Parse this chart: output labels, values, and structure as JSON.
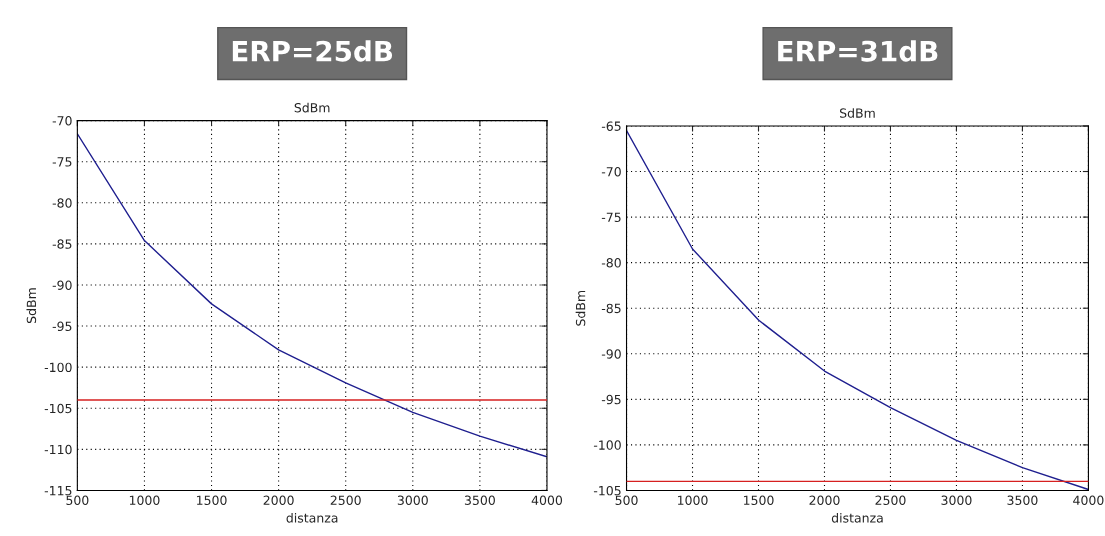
{
  "chart_data": [
    {
      "type": "line",
      "title": "ERP=25dB",
      "subtitle": "SdBm",
      "xlabel": "distanza",
      "ylabel": "SdBm",
      "x": [
        500,
        1000,
        1500,
        2000,
        2500,
        3000,
        3500,
        4000
      ],
      "series": [
        {
          "color": "#1f1f8f",
          "values": [
            -71.6,
            -84.6,
            -92.3,
            -97.9,
            -101.9,
            -105.5,
            -108.4,
            -110.9
          ]
        }
      ],
      "ref_lines": [
        {
          "axis": "y",
          "value": -104,
          "color": "#d62020"
        }
      ],
      "xlim": [
        500,
        4000
      ],
      "ylim": [
        -115,
        -70
      ],
      "xticks": [
        500,
        1000,
        1500,
        2000,
        2500,
        3000,
        3500,
        4000
      ],
      "yticks": [
        -115,
        -110,
        -105,
        -100,
        -95,
        -90,
        -85,
        -80,
        -75,
        -70
      ],
      "grid": true,
      "legend": false
    },
    {
      "type": "line",
      "title": "ERP=31dB",
      "subtitle": "SdBm",
      "xlabel": "distanza",
      "ylabel": "SdBm",
      "x": [
        500,
        1000,
        1500,
        2000,
        2500,
        3000,
        3500,
        4000
      ],
      "series": [
        {
          "color": "#1f1f8f",
          "values": [
            -65.5,
            -78.5,
            -86.3,
            -91.9,
            -95.9,
            -99.5,
            -102.5,
            -104.9
          ]
        }
      ],
      "ref_lines": [
        {
          "axis": "y",
          "value": -104,
          "color": "#d62020"
        }
      ],
      "xlim": [
        500,
        4000
      ],
      "ylim": [
        -105,
        -65
      ],
      "xticks": [
        500,
        1000,
        1500,
        2000,
        2500,
        3000,
        3500,
        4000
      ],
      "yticks": [
        -105,
        -100,
        -95,
        -90,
        -85,
        -80,
        -75,
        -70,
        -65
      ],
      "grid": true,
      "legend": false
    }
  ]
}
